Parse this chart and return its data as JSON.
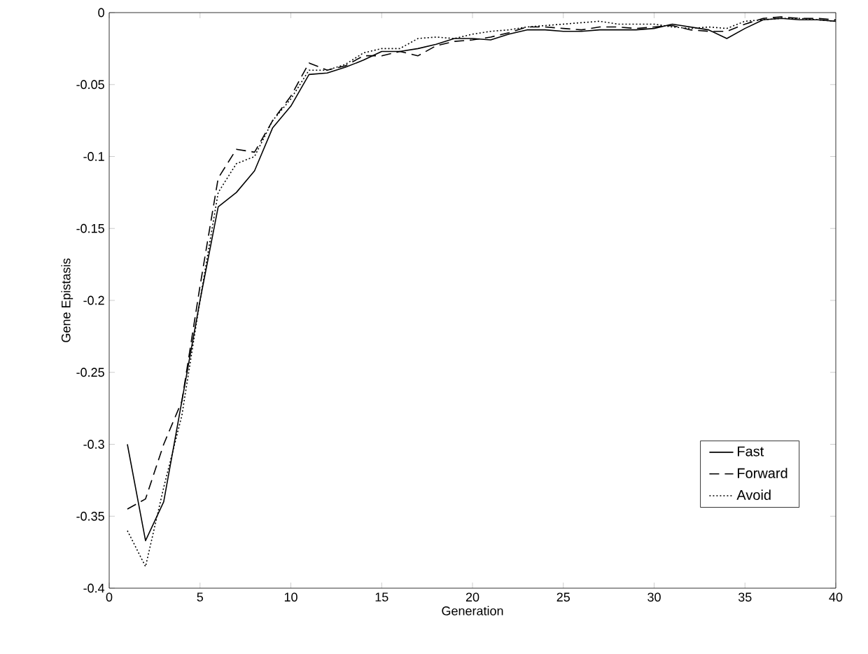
{
  "chart_data": {
    "type": "line",
    "xlabel": "Generation",
    "ylabel": "Gene Epistasis",
    "x": [
      1,
      2,
      3,
      4,
      5,
      6,
      7,
      8,
      9,
      10,
      11,
      12,
      13,
      14,
      15,
      16,
      17,
      18,
      19,
      20,
      21,
      22,
      23,
      24,
      25,
      26,
      27,
      28,
      29,
      30,
      31,
      32,
      33,
      34,
      35,
      36,
      37,
      38,
      39,
      40
    ],
    "series": [
      {
        "name": "Fast",
        "color": "#000000",
        "line_style": "solid",
        "values": [
          -0.3,
          -0.367,
          -0.34,
          -0.27,
          -0.2,
          -0.135,
          -0.125,
          -0.11,
          -0.08,
          -0.065,
          -0.043,
          -0.042,
          -0.038,
          -0.033,
          -0.027,
          -0.027,
          -0.025,
          -0.022,
          -0.018,
          -0.018,
          -0.019,
          -0.015,
          -0.012,
          -0.012,
          -0.013,
          -0.013,
          -0.012,
          -0.012,
          -0.012,
          -0.011,
          -0.008,
          -0.01,
          -0.012,
          -0.018,
          -0.011,
          -0.005,
          -0.004,
          -0.005,
          -0.005,
          -0.006
        ]
      },
      {
        "name": "Forward",
        "color": "#000000",
        "line_style": "dashed",
        "values": [
          -0.345,
          -0.338,
          -0.3,
          -0.27,
          -0.19,
          -0.115,
          -0.095,
          -0.097,
          -0.075,
          -0.058,
          -0.035,
          -0.04,
          -0.037,
          -0.03,
          -0.03,
          -0.027,
          -0.03,
          -0.023,
          -0.02,
          -0.019,
          -0.017,
          -0.014,
          -0.01,
          -0.01,
          -0.011,
          -0.012,
          -0.01,
          -0.01,
          -0.011,
          -0.01,
          -0.009,
          -0.012,
          -0.013,
          -0.013,
          -0.008,
          -0.004,
          -0.003,
          -0.004,
          -0.004,
          -0.005
        ]
      },
      {
        "name": "Avoid",
        "color": "#000000",
        "line_style": "dotted",
        "values": [
          -0.36,
          -0.385,
          -0.33,
          -0.28,
          -0.2,
          -0.125,
          -0.105,
          -0.1,
          -0.075,
          -0.06,
          -0.04,
          -0.04,
          -0.036,
          -0.028,
          -0.025,
          -0.025,
          -0.018,
          -0.017,
          -0.018,
          -0.015,
          -0.013,
          -0.012,
          -0.01,
          -0.009,
          -0.008,
          -0.007,
          -0.006,
          -0.008,
          -0.008,
          -0.008,
          -0.01,
          -0.011,
          -0.01,
          -0.011,
          -0.006,
          -0.005,
          -0.004,
          -0.004,
          -0.005,
          -0.006
        ]
      }
    ],
    "xlim": [
      0,
      40
    ],
    "ylim": [
      -0.4,
      0
    ],
    "xticks": [
      0,
      5,
      10,
      15,
      20,
      25,
      30,
      35,
      40
    ],
    "yticks": [
      -0.4,
      -0.35,
      -0.3,
      -0.25,
      -0.2,
      -0.15,
      -0.1,
      -0.05,
      0
    ],
    "grid": false,
    "legend": "bottom right",
    "marker": "none"
  }
}
